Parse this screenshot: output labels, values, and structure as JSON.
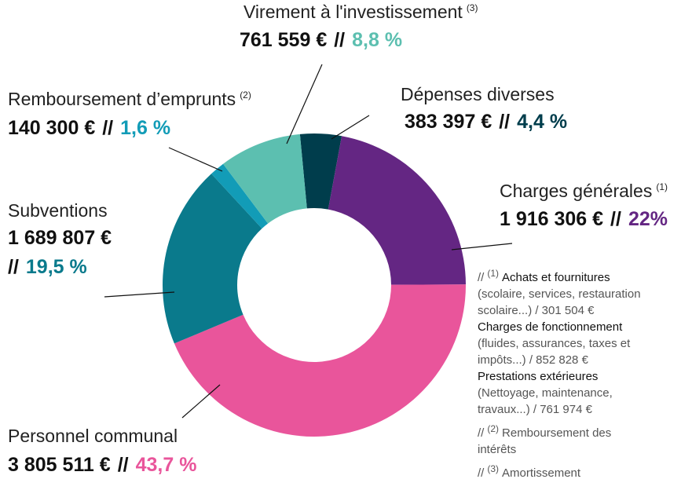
{
  "chart_data": {
    "type": "pie",
    "donut": true,
    "separator": "//",
    "categories": [
      "Dépenses diverses",
      "Charges générales",
      "Personnel communal",
      "Subventions",
      "Remboursement d’emprunts",
      "Virement à l'investissement"
    ],
    "notes_ref": [
      null,
      "(1)",
      null,
      null,
      "(2)",
      "(3)"
    ],
    "values": [
      383397,
      1916306,
      3805511,
      1689807,
      140300,
      761559
    ],
    "value_labels": [
      "383 397 €",
      "1 916 306 €",
      "3 805 511 €",
      "1 689 807 €",
      "140 300 €",
      "761 559 €"
    ],
    "percents": [
      4.4,
      22,
      43.7,
      19.5,
      1.6,
      8.8
    ],
    "percent_labels": [
      "4,4 %",
      "22%",
      "43,7 %",
      "19,5 %",
      "1,6 %",
      "8,8 %"
    ],
    "colors": [
      "#003d4c",
      "#642683",
      "#e9559b",
      "#0a7a8c",
      "#129cb7",
      "#5cbfb0"
    ]
  },
  "notes": [
    {
      "marker": "(1)",
      "items": [
        {
          "title": "Achats et fournitures",
          "lines": [
            "(scolaire, services, restauration",
            "scolaire...) / 301 504 €"
          ]
        },
        {
          "title": "Charges de fonctionnement",
          "lines": [
            "(fluides, assurances, taxes et",
            "impôts...) / 852 828 €"
          ]
        },
        {
          "title": "Prestations extérieures",
          "lines": [
            "(Nettoyage, maintenance,",
            "travaux...) / 761 974 €"
          ]
        }
      ]
    },
    {
      "marker": "(2)",
      "lines": [
        "Remboursement des",
        "intérêts"
      ]
    },
    {
      "marker": "(3)",
      "lines": [
        "Amortissement"
      ]
    }
  ]
}
